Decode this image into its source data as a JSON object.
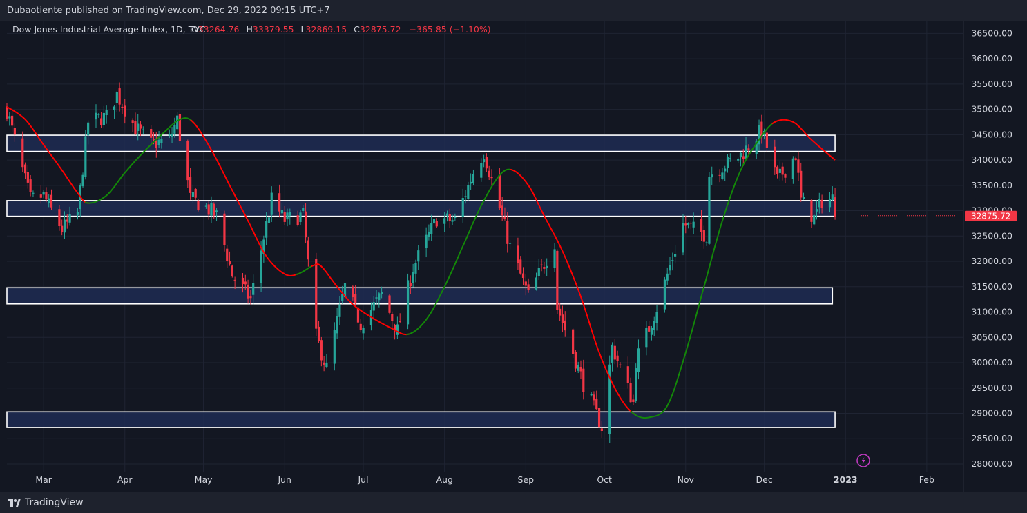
{
  "header": {
    "published_text": "Dubaotiente published on TradingView.com, Dec 29, 2022 09:15 UTC+7"
  },
  "legend": {
    "symbol": "Dow Jones Industrial Average Index, 1D, TVC",
    "open_label": "O",
    "open_value": "33264.76",
    "high_label": "H",
    "high_value": "33379.55",
    "low_label": "L",
    "low_value": "32869.15",
    "close_label": "C",
    "close_value": "32875.72",
    "change": "−365.85 (−1.10%)"
  },
  "footer": {
    "brand": "TradingView"
  },
  "colors": {
    "background": "#131722",
    "up": "#26a69a",
    "down": "#f23645",
    "zone_fill": "#1f2b52",
    "zone_border": "#ffffff",
    "ma_bearish": "#ff0000",
    "ma_bullish": "#138808",
    "grid": "#1f2433",
    "axis_text": "#d1d4dc"
  },
  "chart_data": {
    "type": "candlestick",
    "title": "Dow Jones Industrial Average Index, 1D, TVC",
    "last_price_label": "32875.72",
    "y_axis": {
      "ylim": [
        27850,
        36750
      ],
      "ticks": [
        36500,
        36000,
        35500,
        35000,
        34500,
        34000,
        33500,
        33000,
        32500,
        32000,
        31500,
        31000,
        30500,
        30000,
        29500,
        29000,
        28500,
        28000
      ],
      "tick_labels": [
        "36500.00",
        "36000.00",
        "35500.00",
        "35000.00",
        "34500.00",
        "34000.00",
        "33500.00",
        "33000.00",
        "32500.00",
        "32000.00",
        "31500.00",
        "31000.00",
        "30500.00",
        "30000.00",
        "29500.00",
        "29000.00",
        "28500.00",
        "28000.00"
      ]
    },
    "x_axis": {
      "range": [
        "2022-02-15",
        "2023-02-15"
      ],
      "ticks": [
        {
          "date": "2022-03-01",
          "label": "Mar",
          "bold": false
        },
        {
          "date": "2022-04-01",
          "label": "Apr",
          "bold": false
        },
        {
          "date": "2022-05-01",
          "label": "May",
          "bold": false
        },
        {
          "date": "2022-06-01",
          "label": "Jun",
          "bold": false
        },
        {
          "date": "2022-07-01",
          "label": "Jul",
          "bold": false
        },
        {
          "date": "2022-08-01",
          "label": "Aug",
          "bold": false
        },
        {
          "date": "2022-09-01",
          "label": "Sep",
          "bold": false
        },
        {
          "date": "2022-10-01",
          "label": "Oct",
          "bold": false
        },
        {
          "date": "2022-11-01",
          "label": "Nov",
          "bold": false
        },
        {
          "date": "2022-12-01",
          "label": "Dec",
          "bold": false
        },
        {
          "date": "2023-01-01",
          "label": "2023",
          "bold": true
        },
        {
          "date": "2023-02-01",
          "label": "Feb",
          "bold": false
        }
      ]
    },
    "grid": true,
    "zones": [
      {
        "from": "2022-02-15",
        "to": "2022-12-28",
        "low": 34170,
        "high": 34490
      },
      {
        "from": "2022-02-15",
        "to": "2022-12-28",
        "low": 32890,
        "high": 33200
      },
      {
        "from": "2022-02-15",
        "to": "2022-12-27",
        "low": 31160,
        "high": 31480
      },
      {
        "from": "2022-02-15",
        "to": "2022-12-28",
        "low": 28720,
        "high": 29030
      }
    ],
    "moving_average_points": [
      [
        "2022-02-15",
        35050
      ],
      [
        "2022-02-22",
        34800
      ],
      [
        "2022-03-01",
        34300
      ],
      [
        "2022-03-08",
        33800
      ],
      [
        "2022-03-14",
        33350
      ],
      [
        "2022-03-18",
        33150
      ],
      [
        "2022-03-25",
        33300
      ],
      [
        "2022-04-01",
        33750
      ],
      [
        "2022-04-08",
        34150
      ],
      [
        "2022-04-15",
        34500
      ],
      [
        "2022-04-22",
        34800
      ],
      [
        "2022-04-27",
        34750
      ],
      [
        "2022-05-04",
        34200
      ],
      [
        "2022-05-11",
        33500
      ],
      [
        "2022-05-18",
        32800
      ],
      [
        "2022-05-25",
        32100
      ],
      [
        "2022-06-01",
        31750
      ],
      [
        "2022-06-06",
        31750
      ],
      [
        "2022-06-12",
        31920
      ],
      [
        "2022-06-15",
        31900
      ],
      [
        "2022-06-21",
        31500
      ],
      [
        "2022-06-27",
        31150
      ],
      [
        "2022-07-04",
        30900
      ],
      [
        "2022-07-11",
        30700
      ],
      [
        "2022-07-18",
        30560
      ],
      [
        "2022-07-25",
        30850
      ],
      [
        "2022-08-01",
        31500
      ],
      [
        "2022-08-08",
        32300
      ],
      [
        "2022-08-15",
        33100
      ],
      [
        "2022-08-22",
        33700
      ],
      [
        "2022-08-27",
        33800
      ],
      [
        "2022-09-02",
        33500
      ],
      [
        "2022-09-08",
        32900
      ],
      [
        "2022-09-15",
        32200
      ],
      [
        "2022-09-22",
        31300
      ],
      [
        "2022-09-29",
        30200
      ],
      [
        "2022-10-06",
        29400
      ],
      [
        "2022-10-12",
        29000
      ],
      [
        "2022-10-18",
        28920
      ],
      [
        "2022-10-25",
        29150
      ],
      [
        "2022-11-01",
        30200
      ],
      [
        "2022-11-08",
        31500
      ],
      [
        "2022-11-15",
        32800
      ],
      [
        "2022-11-22",
        33800
      ],
      [
        "2022-11-29",
        34400
      ],
      [
        "2022-12-05",
        34750
      ],
      [
        "2022-12-12",
        34750
      ],
      [
        "2022-12-19",
        34400
      ],
      [
        "2022-12-28",
        34000
      ]
    ],
    "ma_color_segments": [
      {
        "from": "2022-02-15",
        "to": "2022-03-18",
        "color": "red"
      },
      {
        "from": "2022-03-18",
        "to": "2022-04-27",
        "color": "green"
      },
      {
        "from": "2022-04-27",
        "to": "2022-06-06",
        "color": "red"
      },
      {
        "from": "2022-06-06",
        "to": "2022-06-12",
        "color": "green"
      },
      {
        "from": "2022-06-12",
        "to": "2022-07-18",
        "color": "red"
      },
      {
        "from": "2022-07-18",
        "to": "2022-08-27",
        "color": "green"
      },
      {
        "from": "2022-08-27",
        "to": "2022-10-12",
        "color": "red"
      },
      {
        "from": "2022-10-12",
        "to": "2022-12-05",
        "color": "green"
      },
      {
        "from": "2022-12-05",
        "to": "2022-12-28",
        "color": "red"
      }
    ],
    "close_points": [
      [
        "2022-02-15",
        34988
      ],
      [
        "2022-02-22",
        33596
      ],
      [
        "2022-02-24",
        33223
      ],
      [
        "2022-03-01",
        33294
      ],
      [
        "2022-03-08",
        32632
      ],
      [
        "2022-03-14",
        32945
      ],
      [
        "2022-03-18",
        34754
      ],
      [
        "2022-03-25",
        34861
      ],
      [
        "2022-03-29",
        35294
      ],
      [
        "2022-04-05",
        34641
      ],
      [
        "2022-04-11",
        34308
      ],
      [
        "2022-04-18",
        34411
      ],
      [
        "2022-04-21",
        34792
      ],
      [
        "2022-04-26",
        33240
      ],
      [
        "2022-05-02",
        33061
      ],
      [
        "2022-05-06",
        32899
      ],
      [
        "2022-05-12",
        31730
      ],
      [
        "2022-05-19",
        31253
      ],
      [
        "2022-05-27",
        33213
      ],
      [
        "2022-06-01",
        32813
      ],
      [
        "2022-06-08",
        32910
      ],
      [
        "2022-06-13",
        30517
      ],
      [
        "2022-06-17",
        29888
      ],
      [
        "2022-06-24",
        31500
      ],
      [
        "2022-06-30",
        30775
      ],
      [
        "2022-07-08",
        31338
      ],
      [
        "2022-07-14",
        30630
      ],
      [
        "2022-07-20",
        31875
      ],
      [
        "2022-07-29",
        32845
      ],
      [
        "2022-08-05",
        32803
      ],
      [
        "2022-08-12",
        33761
      ],
      [
        "2022-08-16",
        34152
      ],
      [
        "2022-08-22",
        33063
      ],
      [
        "2022-08-26",
        32283
      ],
      [
        "2022-09-02",
        31318
      ],
      [
        "2022-09-12",
        32381
      ],
      [
        "2022-09-13",
        31105
      ],
      [
        "2022-09-23",
        29590
      ],
      [
        "2022-09-30",
        28725
      ],
      [
        "2022-10-04",
        30316
      ],
      [
        "2022-10-12",
        29210
      ],
      [
        "2022-10-13",
        30038
      ],
      [
        "2022-10-21",
        31082
      ],
      [
        "2022-10-31",
        32733
      ],
      [
        "2022-11-09",
        32514
      ],
      [
        "2022-11-10",
        33716
      ],
      [
        "2022-11-22",
        34098
      ],
      [
        "2022-11-30",
        34590
      ],
      [
        "2022-12-06",
        33597
      ],
      [
        "2022-12-13",
        34108
      ],
      [
        "2022-12-15",
        33202
      ],
      [
        "2022-12-20",
        32850
      ],
      [
        "2022-12-23",
        33203
      ],
      [
        "2022-12-27",
        33241
      ],
      [
        "2022-12-28",
        32876
      ]
    ],
    "x_domain_ms_note_removed": true
  }
}
